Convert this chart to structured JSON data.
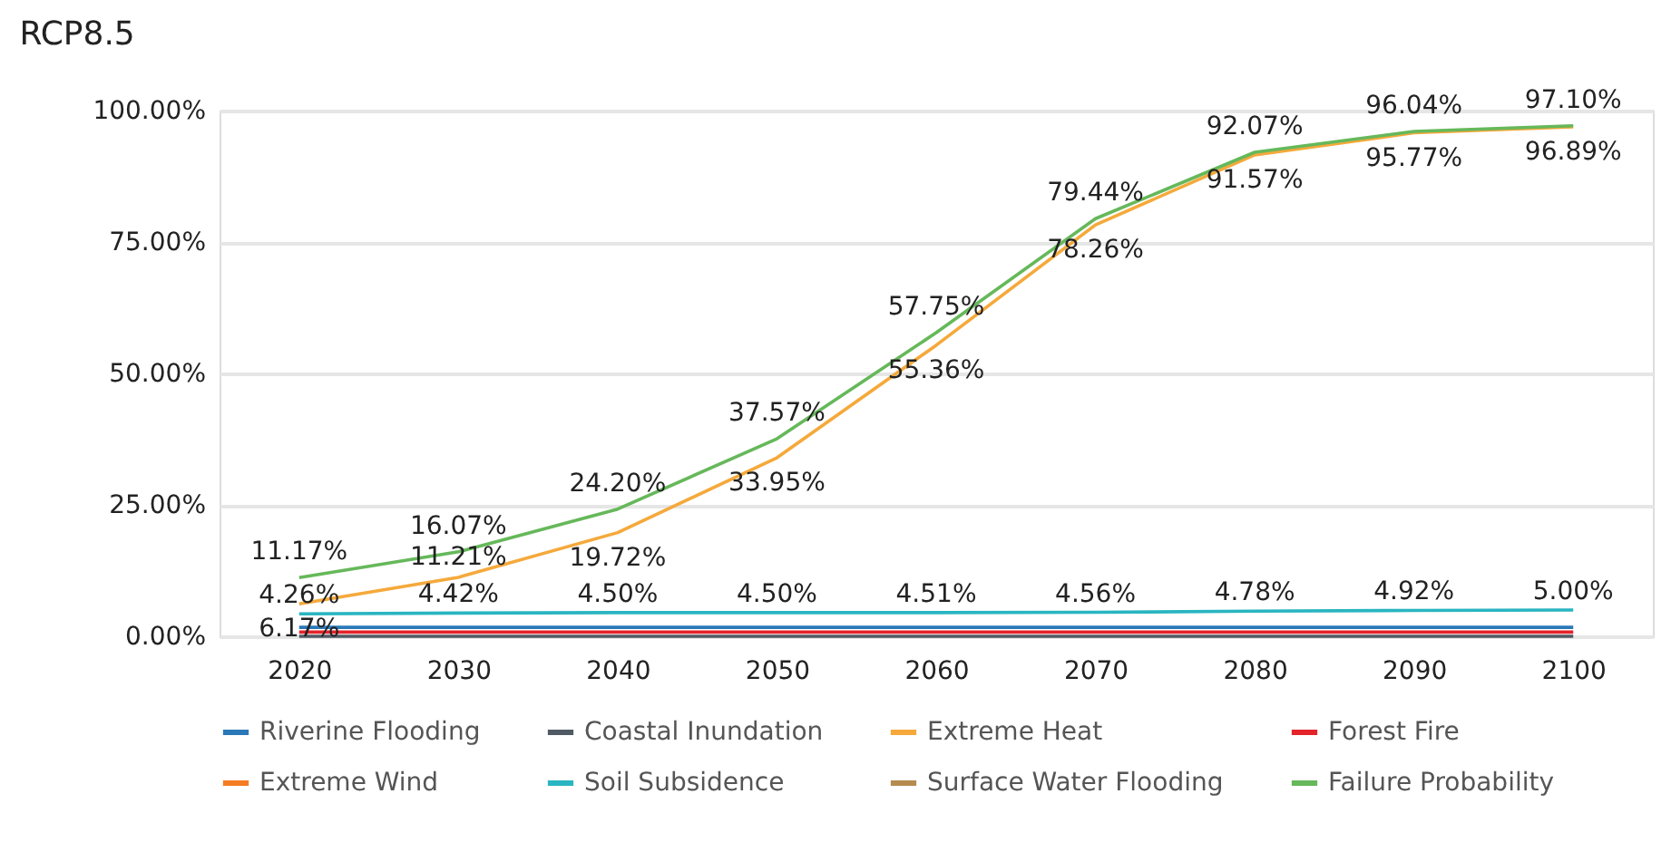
{
  "chart_data": {
    "type": "line",
    "title": "RCP8.5",
    "categories": [
      "2020",
      "2030",
      "2040",
      "2050",
      "2060",
      "2070",
      "2080",
      "2090",
      "2100"
    ],
    "series": [
      {
        "name": "Riverine Flooding",
        "color": "#2a78b8",
        "values": [
          1.7,
          1.7,
          1.7,
          1.7,
          1.7,
          1.7,
          1.7,
          1.7,
          1.7
        ]
      },
      {
        "name": "Coastal Inundation",
        "color": "#505a64",
        "values": [
          0.0,
          0.0,
          0.0,
          0.0,
          0.0,
          0.0,
          0.0,
          0.0,
          0.0
        ]
      },
      {
        "name": "Extreme Heat",
        "color": "#f5a93b",
        "values": [
          6.17,
          11.21,
          19.72,
          33.95,
          55.36,
          78.26,
          91.57,
          95.77,
          96.89
        ],
        "value_labels": [
          "6.17%",
          "11.21%",
          "19.72%",
          "33.95%",
          "55.36%",
          "78.26%",
          "91.57%",
          "95.77%",
          "96.89%"
        ]
      },
      {
        "name": "Forest Fire",
        "color": "#e3242b",
        "values": [
          0.8,
          0.8,
          0.8,
          0.8,
          0.8,
          0.8,
          0.8,
          0.8,
          0.8
        ]
      },
      {
        "name": "Extreme Wind",
        "color": "#f57c22",
        "values": [
          null,
          null,
          null,
          null,
          null,
          null,
          null,
          null,
          null
        ]
      },
      {
        "name": "Soil Subsidence",
        "color": "#29b5c1",
        "values": [
          4.26,
          4.42,
          4.5,
          4.5,
          4.51,
          4.56,
          4.78,
          4.92,
          5.0
        ],
        "value_labels": [
          "4.26%",
          "4.42%",
          "4.50%",
          "4.50%",
          "4.51%",
          "4.56%",
          "4.78%",
          "4.92%",
          "5.00%"
        ]
      },
      {
        "name": "Surface Water Flooding",
        "color": "#b58c4f",
        "values": [
          null,
          null,
          null,
          null,
          null,
          null,
          null,
          null,
          null
        ]
      },
      {
        "name": "Failure Probability",
        "color": "#66b85a",
        "values": [
          11.17,
          16.07,
          24.2,
          37.57,
          57.75,
          79.44,
          92.07,
          96.04,
          97.1
        ],
        "value_labels": [
          "11.17%",
          "16.07%",
          "24.20%",
          "37.57%",
          "57.75%",
          "79.44%",
          "92.07%",
          "96.04%",
          "97.10%"
        ]
      }
    ],
    "ylim": [
      0,
      100
    ],
    "yticks": [
      {
        "value": 0,
        "label": "0.00%"
      },
      {
        "value": 25,
        "label": "25.00%"
      },
      {
        "value": 50,
        "label": "50.00%"
      },
      {
        "value": 75,
        "label": "75.00%"
      },
      {
        "value": 100,
        "label": "100.00%"
      }
    ],
    "grid": "y",
    "legend": "bottom",
    "marker": "none",
    "line_style": "solid"
  }
}
